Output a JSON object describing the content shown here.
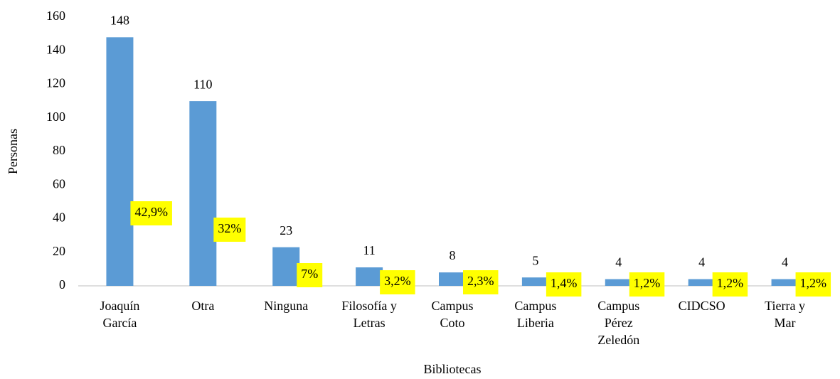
{
  "chart_data": {
    "type": "bar",
    "x_label": "Bibliotecas",
    "y_label": "Personas",
    "categories": [
      "Joaquín\nGarcía",
      "Otra",
      "Ninguna",
      "Filosofía y\nLetras",
      "Campus\nCoto",
      "Campus\nLiberia",
      "Campus\nPérez\nZeledón",
      "CIDCSO",
      "Tierra y\nMar"
    ],
    "values": [
      148,
      110,
      23,
      11,
      8,
      5,
      4,
      4,
      4
    ],
    "annotations": [
      "42,9%",
      "32%",
      "7%",
      "3,2%",
      "2,3%",
      "1,4%",
      "1,2%",
      "1,2%",
      "1,2%"
    ],
    "color": "#5b9bd5",
    "annotation_color": "#ffff00",
    "ylim": [
      0,
      160
    ],
    "yticks": [
      0,
      20,
      40,
      60,
      80,
      100,
      120,
      140,
      160
    ],
    "grid": false
  }
}
